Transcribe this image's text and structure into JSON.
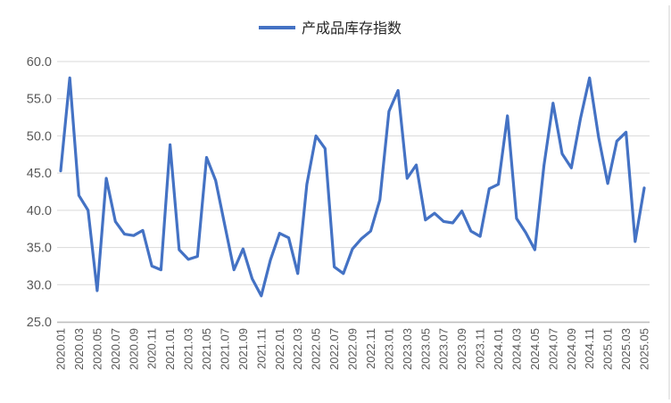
{
  "legend": {
    "label": "产成品库存指数"
  },
  "colors": {
    "line": "#4472C4",
    "grid": "#D9D9D9",
    "axis": "#BFBFBF",
    "tick_text": "#595959",
    "legend_text": "#262626",
    "background": "#FFFFFF",
    "right_edge_line": "#D9D9D9"
  },
  "chart_data": {
    "type": "line",
    "title": "",
    "xlabel": "",
    "ylabel": "",
    "legend_position": "top",
    "grid": "horizontal",
    "ylim": [
      25.0,
      60.0
    ],
    "y_ticks": [
      "25.0",
      "30.0",
      "35.0",
      "40.0",
      "45.0",
      "50.0",
      "55.0",
      "60.0"
    ],
    "y_tick_values": [
      25,
      30,
      35,
      40,
      45,
      50,
      55,
      60
    ],
    "x": [
      "2020.01",
      "2020.02",
      "2020.03",
      "2020.04",
      "2020.05",
      "2020.06",
      "2020.07",
      "2020.08",
      "2020.09",
      "2020.10",
      "2020.11",
      "2020.12",
      "2021.01",
      "2021.02",
      "2021.03",
      "2021.04",
      "2021.05",
      "2021.06",
      "2021.07",
      "2021.08",
      "2021.09",
      "2021.10",
      "2021.11",
      "2021.12",
      "2022.01",
      "2022.02",
      "2022.03",
      "2022.04",
      "2022.05",
      "2022.06",
      "2022.07",
      "2022.08",
      "2022.09",
      "2022.10",
      "2022.11",
      "2022.12",
      "2023.01",
      "2023.02",
      "2023.03",
      "2023.04",
      "2023.05",
      "2023.06",
      "2023.07",
      "2023.08",
      "2023.09",
      "2023.10",
      "2023.11",
      "2023.12",
      "2024.01",
      "2024.02",
      "2024.03",
      "2024.04",
      "2024.05",
      "2024.06",
      "2024.07",
      "2024.08",
      "2024.09",
      "2024.10",
      "2024.11",
      "2024.12",
      "2025.01",
      "2025.02",
      "2025.03",
      "2025.04",
      "2025.05"
    ],
    "x_tick_labels": [
      "2020.01",
      "2020.03",
      "2020.05",
      "2020.07",
      "2020.09",
      "2020.11",
      "2021.01",
      "2021.03",
      "2021.05",
      "2021.07",
      "2021.09",
      "2021.11",
      "2022.01",
      "2022.03",
      "2022.05",
      "2022.07",
      "2022.09",
      "2022.11",
      "2023.01",
      "2023.03",
      "2023.05",
      "2023.07",
      "2023.09",
      "2023.11",
      "2024.01",
      "2024.03",
      "2024.05",
      "2024.07",
      "2024.09",
      "2024.11",
      "2025.01",
      "2025.03",
      "2025.05"
    ],
    "series": [
      {
        "name": "产成品库存指数",
        "values": [
          45.3,
          57.8,
          42.0,
          40.0,
          29.2,
          44.3,
          38.5,
          36.8,
          36.6,
          37.3,
          32.5,
          32.0,
          48.8,
          34.7,
          33.4,
          33.8,
          47.1,
          44.0,
          38.0,
          32.0,
          34.8,
          30.8,
          28.5,
          33.3,
          36.9,
          36.3,
          31.5,
          43.5,
          50.0,
          48.3,
          32.4,
          31.5,
          34.8,
          36.2,
          37.2,
          41.4,
          53.3,
          56.1,
          44.3,
          46.1,
          38.7,
          39.6,
          38.5,
          38.3,
          39.9,
          37.2,
          36.5,
          42.9,
          43.5,
          52.7,
          38.9,
          37.0,
          34.7,
          46.0,
          54.4,
          47.6,
          45.7,
          52.3,
          57.8,
          49.8,
          43.6,
          49.3,
          50.5,
          35.8,
          43.0
        ]
      }
    ]
  }
}
